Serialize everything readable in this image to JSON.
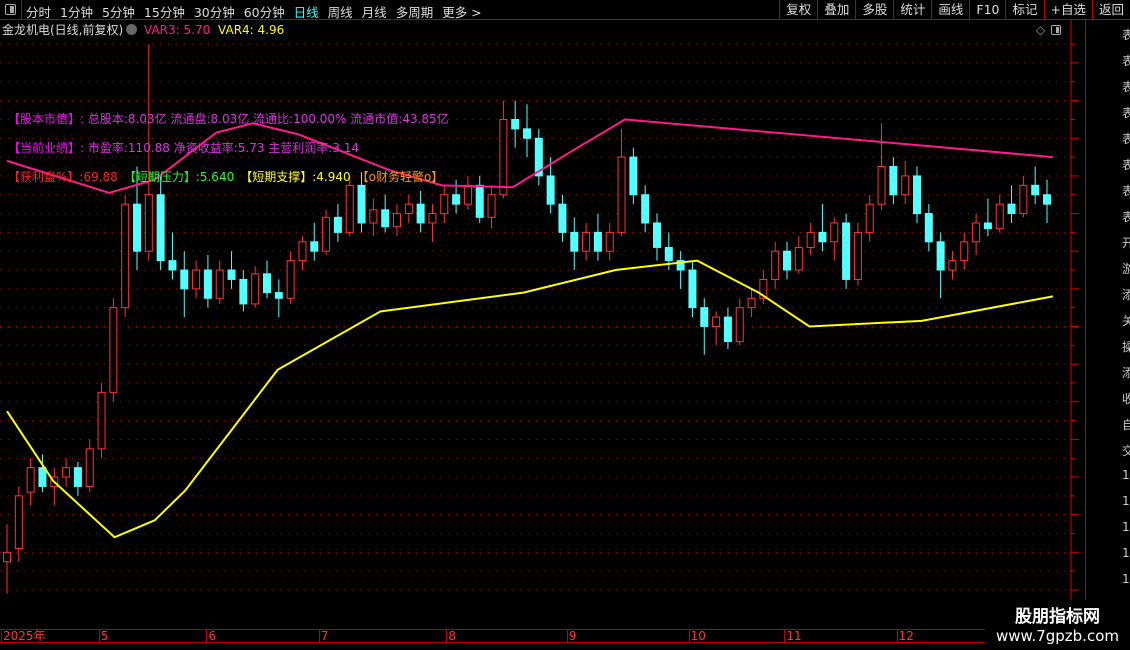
{
  "toolbar": {
    "periods": [
      "分时",
      "1分钟",
      "5分钟",
      "15分钟",
      "30分钟",
      "60分钟",
      "日线",
      "周线",
      "月线",
      "多周期",
      "更多 >"
    ],
    "active": "日线",
    "buttons": [
      "复权",
      "叠加",
      "多股",
      "统计",
      "画线",
      "F10",
      "标记",
      "+自选",
      "返回"
    ]
  },
  "info": {
    "title": "金龙机电(日线,前复权)",
    "var3": "VAR3: 5.70",
    "var4": "VAR4: 4.96"
  },
  "colors": {
    "up": "#ff3333",
    "down": "#54ffff",
    "var3": "#ff1a8c",
    "var4": "#ffff00",
    "axis": "#ff3333",
    "grid": "#b00000"
  },
  "overlay": {
    "row1": {
      "label": "【股本市值】:",
      "text": "总股本:8.03亿 流通盘:8.03亿 流通比:100.00% 流通市值:43.85亿"
    },
    "row2": {
      "label": "【当前业绩】:",
      "text": "市盈率:110.88 净资收益率:5.73 主营利润率:3.14"
    },
    "row3": [
      {
        "text": "【获利盘%】:69.88",
        "color": "#ff2020"
      },
      {
        "text": "【短期压力】:5.640",
        "color": "#20ff20"
      },
      {
        "text": "【短期支撑】:4.940",
        "color": "#ffff20"
      },
      {
        "text": "【o财务轻警o】",
        "color": "#ff9900"
      }
    ]
  },
  "right_strip": [
    "表",
    "表",
    "表",
    "表",
    "表",
    "表",
    "表",
    "表",
    "开",
    "游",
    "添",
    "关",
    "操",
    "添",
    "收",
    "自",
    "交",
    "1",
    "1",
    "1",
    "1",
    "1",
    "1"
  ],
  "watermark": {
    "line1": "股朋指标网",
    "line2": "www.7gpzb.com"
  },
  "chart_data": {
    "type": "candlestick",
    "ylim": [
      3.35,
      6.3
    ],
    "yticks": [
      "6.20",
      "6.00",
      "5.80",
      "5.60",
      "5.40",
      "5.20",
      "5.00",
      "4.80",
      "4.60",
      "4.40",
      "4.20",
      "4.00",
      "3.80",
      "3.60",
      "3.40"
    ],
    "xlabels": [
      {
        "i": 0,
        "label": "2025年"
      },
      {
        "i": 8.2,
        "label": "5"
      },
      {
        "i": 17.3,
        "label": "6"
      },
      {
        "i": 26.8,
        "label": "7"
      },
      {
        "i": 37.6,
        "label": "8"
      },
      {
        "i": 47.8,
        "label": "9"
      },
      {
        "i": 58.1,
        "label": "10"
      },
      {
        "i": 66.2,
        "label": "11"
      },
      {
        "i": 75.7,
        "label": "12"
      }
    ],
    "ohlc": [
      [
        3.55,
        3.75,
        3.38,
        3.6
      ],
      [
        3.62,
        3.95,
        3.55,
        3.9
      ],
      [
        3.92,
        4.1,
        3.85,
        4.05
      ],
      [
        4.05,
        4.12,
        3.92,
        3.95
      ],
      [
        3.95,
        4.05,
        3.85,
        4.0
      ],
      [
        4.0,
        4.1,
        3.95,
        4.05
      ],
      [
        4.05,
        4.08,
        3.9,
        3.95
      ],
      [
        3.95,
        4.2,
        3.92,
        4.15
      ],
      [
        4.15,
        4.5,
        4.1,
        4.45
      ],
      [
        4.45,
        4.95,
        4.4,
        4.9
      ],
      [
        4.9,
        5.5,
        4.85,
        5.45
      ],
      [
        5.45,
        5.65,
        5.1,
        5.2
      ],
      [
        5.2,
        6.3,
        5.15,
        5.5
      ],
      [
        5.5,
        5.6,
        5.1,
        5.15
      ],
      [
        5.15,
        5.3,
        5.05,
        5.1
      ],
      [
        5.1,
        5.2,
        4.85,
        5.0
      ],
      [
        5.0,
        5.15,
        4.95,
        5.1
      ],
      [
        5.1,
        5.18,
        4.9,
        4.95
      ],
      [
        4.95,
        5.15,
        4.92,
        5.1
      ],
      [
        5.1,
        5.2,
        5.0,
        5.05
      ],
      [
        5.05,
        5.1,
        4.88,
        4.92
      ],
      [
        4.92,
        5.12,
        4.9,
        5.08
      ],
      [
        5.08,
        5.15,
        4.95,
        4.98
      ],
      [
        4.98,
        5.05,
        4.85,
        4.95
      ],
      [
        4.95,
        5.2,
        4.92,
        5.15
      ],
      [
        5.15,
        5.28,
        5.1,
        5.25
      ],
      [
        5.25,
        5.35,
        5.15,
        5.2
      ],
      [
        5.2,
        5.42,
        5.18,
        5.38
      ],
      [
        5.38,
        5.45,
        5.25,
        5.3
      ],
      [
        5.3,
        5.6,
        5.28,
        5.55
      ],
      [
        5.55,
        5.62,
        5.3,
        5.35
      ],
      [
        5.35,
        5.48,
        5.28,
        5.42
      ],
      [
        5.42,
        5.5,
        5.3,
        5.33
      ],
      [
        5.33,
        5.45,
        5.28,
        5.4
      ],
      [
        5.4,
        5.5,
        5.35,
        5.45
      ],
      [
        5.45,
        5.52,
        5.3,
        5.35
      ],
      [
        5.35,
        5.45,
        5.25,
        5.4
      ],
      [
        5.4,
        5.55,
        5.35,
        5.5
      ],
      [
        5.5,
        5.58,
        5.4,
        5.45
      ],
      [
        5.45,
        5.6,
        5.42,
        5.55
      ],
      [
        5.55,
        5.6,
        5.35,
        5.38
      ],
      [
        5.38,
        5.55,
        5.32,
        5.5
      ],
      [
        5.5,
        6.0,
        5.48,
        5.9
      ],
      [
        5.9,
        6.0,
        5.75,
        5.85
      ],
      [
        5.85,
        5.98,
        5.7,
        5.8
      ],
      [
        5.8,
        5.85,
        5.55,
        5.6
      ],
      [
        5.6,
        5.7,
        5.4,
        5.45
      ],
      [
        5.45,
        5.5,
        5.25,
        5.3
      ],
      [
        5.3,
        5.38,
        5.1,
        5.2
      ],
      [
        5.2,
        5.35,
        5.15,
        5.3
      ],
      [
        5.3,
        5.4,
        5.15,
        5.2
      ],
      [
        5.2,
        5.35,
        5.15,
        5.3
      ],
      [
        5.3,
        5.85,
        5.28,
        5.7
      ],
      [
        5.7,
        5.75,
        5.45,
        5.5
      ],
      [
        5.5,
        5.55,
        5.3,
        5.35
      ],
      [
        5.35,
        5.4,
        5.15,
        5.22
      ],
      [
        5.22,
        5.3,
        5.1,
        5.15
      ],
      [
        5.15,
        5.2,
        5.0,
        5.1
      ],
      [
        5.1,
        5.15,
        4.85,
        4.9
      ],
      [
        4.9,
        4.95,
        4.65,
        4.8
      ],
      [
        4.8,
        4.88,
        4.7,
        4.85
      ],
      [
        4.85,
        4.9,
        4.68,
        4.72
      ],
      [
        4.72,
        4.95,
        4.7,
        4.9
      ],
      [
        4.9,
        5.0,
        4.85,
        4.95
      ],
      [
        4.95,
        5.1,
        4.92,
        5.05
      ],
      [
        5.05,
        5.25,
        5.0,
        5.2
      ],
      [
        5.2,
        5.25,
        5.05,
        5.1
      ],
      [
        5.1,
        5.28,
        5.08,
        5.22
      ],
      [
        5.22,
        5.35,
        5.18,
        5.3
      ],
      [
        5.3,
        5.45,
        5.2,
        5.25
      ],
      [
        5.25,
        5.38,
        5.15,
        5.35
      ],
      [
        5.35,
        5.4,
        5.0,
        5.05
      ],
      [
        5.05,
        5.35,
        5.02,
        5.3
      ],
      [
        5.3,
        5.5,
        5.25,
        5.45
      ],
      [
        5.45,
        5.88,
        5.42,
        5.65
      ],
      [
        5.65,
        5.7,
        5.45,
        5.5
      ],
      [
        5.5,
        5.68,
        5.45,
        5.6
      ],
      [
        5.6,
        5.65,
        5.35,
        5.4
      ],
      [
        5.4,
        5.45,
        5.2,
        5.25
      ],
      [
        5.25,
        5.3,
        4.95,
        5.1
      ],
      [
        5.1,
        5.2,
        5.05,
        5.15
      ],
      [
        5.15,
        5.3,
        5.1,
        5.25
      ],
      [
        5.25,
        5.4,
        5.18,
        5.35
      ],
      [
        5.35,
        5.48,
        5.28,
        5.32
      ],
      [
        5.32,
        5.5,
        5.3,
        5.45
      ],
      [
        5.45,
        5.55,
        5.35,
        5.4
      ],
      [
        5.4,
        5.6,
        5.38,
        5.55
      ],
      [
        5.55,
        5.65,
        5.45,
        5.5
      ],
      [
        5.5,
        5.58,
        5.35,
        5.45
      ]
    ],
    "series": [
      {
        "name": "VAR3",
        "color": "#ff1a8c",
        "points": [
          [
            0,
            5.68
          ],
          [
            8.65,
            5.51
          ],
          [
            12.5,
            5.58
          ],
          [
            17.7,
            5.83
          ],
          [
            20.8,
            5.88
          ],
          [
            24.7,
            5.82
          ],
          [
            32.4,
            5.63
          ],
          [
            36.8,
            5.55
          ],
          [
            42.8,
            5.54
          ],
          [
            48,
            5.74
          ],
          [
            52.3,
            5.9
          ],
          [
            88.5,
            5.7
          ]
        ]
      },
      {
        "name": "VAR4",
        "color": "#ffff00",
        "points": [
          [
            0,
            4.35
          ],
          [
            3.9,
            3.98
          ],
          [
            9.1,
            3.68
          ],
          [
            12.5,
            3.77
          ],
          [
            15.1,
            3.93
          ],
          [
            22.9,
            4.57
          ],
          [
            31.6,
            4.88
          ],
          [
            43.7,
            4.98
          ],
          [
            51.5,
            5.1
          ],
          [
            58.4,
            5.15
          ],
          [
            63.6,
            4.98
          ],
          [
            67.9,
            4.8
          ],
          [
            77.4,
            4.83
          ],
          [
            88.5,
            4.96
          ]
        ]
      }
    ]
  }
}
